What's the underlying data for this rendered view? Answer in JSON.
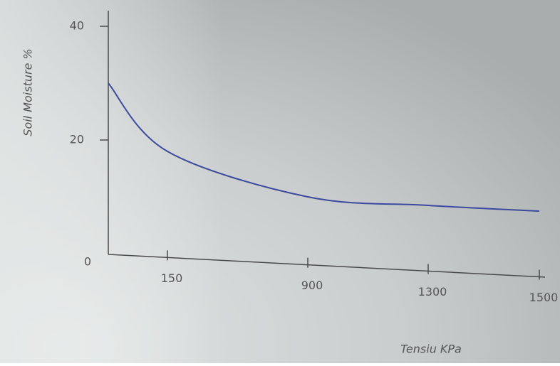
{
  "chart_data": {
    "type": "line",
    "x_label": "Tensiu KPa",
    "y_label": "Soil Moisture %",
    "categories": [
      null,
      "150",
      "900",
      "1300",
      "1500"
    ],
    "series": [
      {
        "name": null,
        "color": "#3b4a9c",
        "values": [
          30,
          18,
          10,
          8.5,
          7.5
        ]
      }
    ],
    "ylim": [
      0,
      40
    ],
    "yticks": [
      0,
      20,
      40
    ]
  }
}
